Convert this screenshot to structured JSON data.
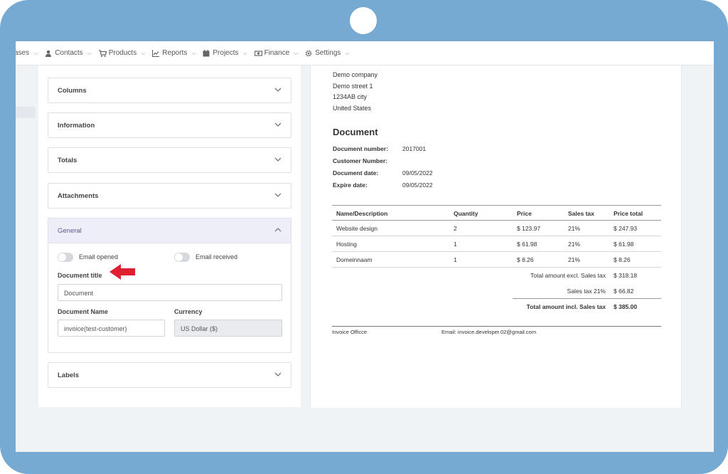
{
  "nav": {
    "items": [
      {
        "label": "ases",
        "icon": "none"
      },
      {
        "label": "Contacts",
        "icon": "user-icon"
      },
      {
        "label": "Products",
        "icon": "cart-icon"
      },
      {
        "label": "Reports",
        "icon": "chart-icon"
      },
      {
        "label": "Projects",
        "icon": "calendar-icon"
      },
      {
        "label": "Finance",
        "icon": "money-icon"
      },
      {
        "label": "Settings",
        "icon": "gear-icon"
      }
    ]
  },
  "accordion": {
    "columns": "Columns",
    "information": "Information",
    "totals": "Totals",
    "attachments": "Attachments",
    "general": "General",
    "labels": "Labels"
  },
  "general": {
    "email_opened": "Email opened",
    "email_received": "Email received",
    "document_title_label": "Document title",
    "document_title_value": "Document",
    "document_name_label": "Document Name",
    "document_name_value": "invoice(test-customer)",
    "currency_label": "Currency",
    "currency_value": "US Dollar ($)"
  },
  "document": {
    "address": [
      "Demo company",
      "Demo street 1",
      "1234AB city",
      "United States"
    ],
    "title": "Document",
    "meta": [
      {
        "key": "Document number:",
        "value": "2017001"
      },
      {
        "key": "Customer Number:",
        "value": ""
      },
      {
        "key": "Document date:",
        "value": "09/05/2022"
      },
      {
        "key": "Expire date:",
        "value": "09/05/2022"
      }
    ],
    "table": {
      "headers": [
        "Name/Description",
        "Quantity",
        "Price",
        "Sales tax",
        "Price total"
      ],
      "rows": [
        [
          "Website design",
          "2",
          "$ 123.97",
          "21%",
          "$ 247.93"
        ],
        [
          "Hosting",
          "1",
          "$ 61.98",
          "21%",
          "$ 61.98"
        ],
        [
          "Domeinnaam",
          "1",
          "$ 8.26",
          "21%",
          "$ 8.26"
        ]
      ]
    },
    "totals": [
      {
        "label": "Total amount excl. Sales tax",
        "value": "$ 318.18"
      },
      {
        "label": "Sales tax 21%",
        "value": "$ 66.82"
      },
      {
        "label": "Total amount incl. Sales tax",
        "value": "$ 385.00"
      }
    ],
    "footer_left": "Invoice Officce",
    "footer_right": "Email: invoice.developer.02@gmail.com"
  },
  "colors": {
    "frame": "#76aad3",
    "accent_arrow": "#e02030",
    "general_header_bg": "#eeeef9"
  }
}
